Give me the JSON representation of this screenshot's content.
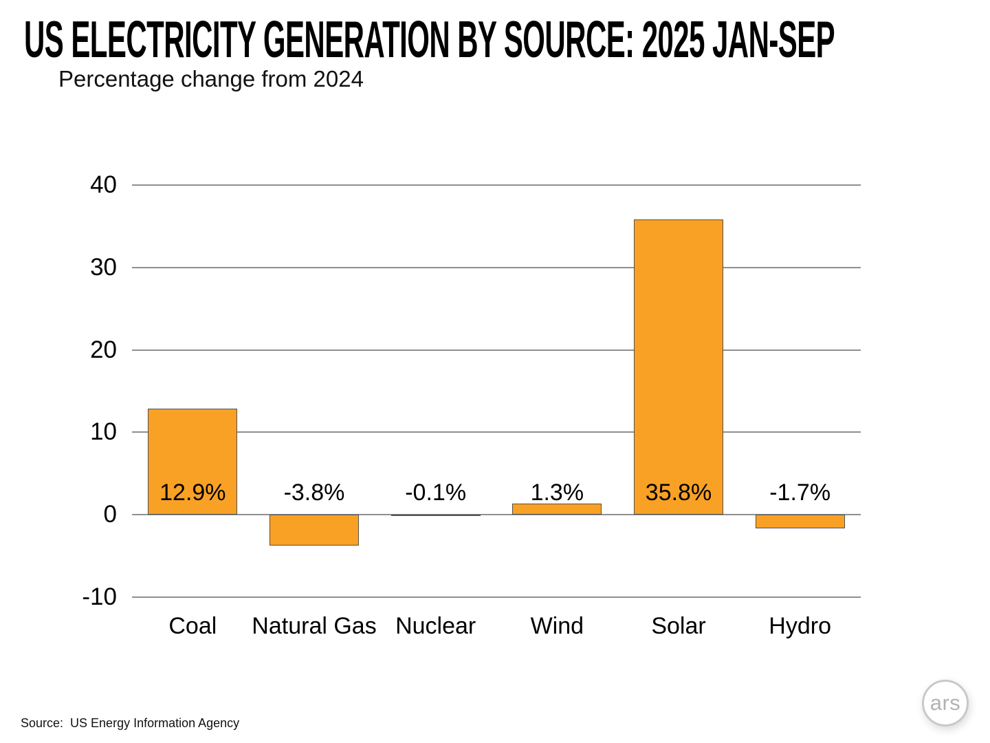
{
  "header": {
    "title": "US ELECTRICITY GENERATION BY SOURCE: 2025 JAN-SEP",
    "subtitle": "Percentage change from 2024"
  },
  "chart_data": {
    "type": "bar",
    "title": "US ELECTRICITY GENERATION BY SOURCE: 2025 JAN-SEP",
    "subtitle": "Percentage change from 2024",
    "categories": [
      "Coal",
      "Natural Gas",
      "Nuclear",
      "Wind",
      "Solar",
      "Hydro"
    ],
    "values": [
      12.9,
      -3.8,
      -0.1,
      1.3,
      35.8,
      -1.7
    ],
    "value_labels": [
      "12.9%",
      "-3.8%",
      "-0.1%",
      "1.3%",
      "35.8%",
      "-1.7%"
    ],
    "xlabel": "",
    "ylabel": "",
    "ylim": [
      -10,
      40
    ],
    "yticks": [
      40,
      30,
      20,
      10,
      0,
      -10
    ],
    "grid": true,
    "legend": "none",
    "bar_color": "#F9A125",
    "bar_border_color": "#4f4f4f",
    "gridline_color": "#8f8f8f"
  },
  "footer": {
    "source": "Source:  US Energy Information Agency",
    "logo_text": "ars"
  }
}
